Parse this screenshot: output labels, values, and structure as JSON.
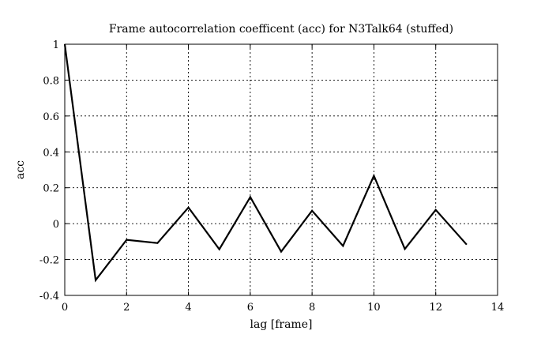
{
  "chart_data": {
    "type": "line",
    "title": "Frame autocorrelation coefficent (acc) for N3Talk64 (stuffed)",
    "xlabel": "lag [frame]",
    "ylabel": "acc",
    "xlim": [
      0,
      14
    ],
    "ylim": [
      -0.4,
      1
    ],
    "xticks": [
      0,
      2,
      4,
      6,
      8,
      10,
      12,
      14
    ],
    "yticks": [
      -0.4,
      -0.2,
      0,
      0.2,
      0.4,
      0.6,
      0.8,
      1
    ],
    "xtick_labels": [
      "0",
      "2",
      "4",
      "6",
      "8",
      "10",
      "12",
      "14"
    ],
    "ytick_labels": [
      "-0.4",
      "-0.2",
      "0",
      "0.2",
      "0.4",
      "0.6",
      "0.8",
      "1"
    ],
    "grid": true,
    "series": [
      {
        "x": [
          0,
          1,
          2,
          3,
          4,
          5,
          6,
          7,
          8,
          9,
          10,
          11,
          12,
          13
        ],
        "values": [
          1.0,
          -0.315,
          -0.09,
          -0.108,
          0.09,
          -0.143,
          0.148,
          -0.156,
          0.072,
          -0.124,
          0.267,
          -0.141,
          0.077,
          -0.117
        ]
      }
    ]
  }
}
